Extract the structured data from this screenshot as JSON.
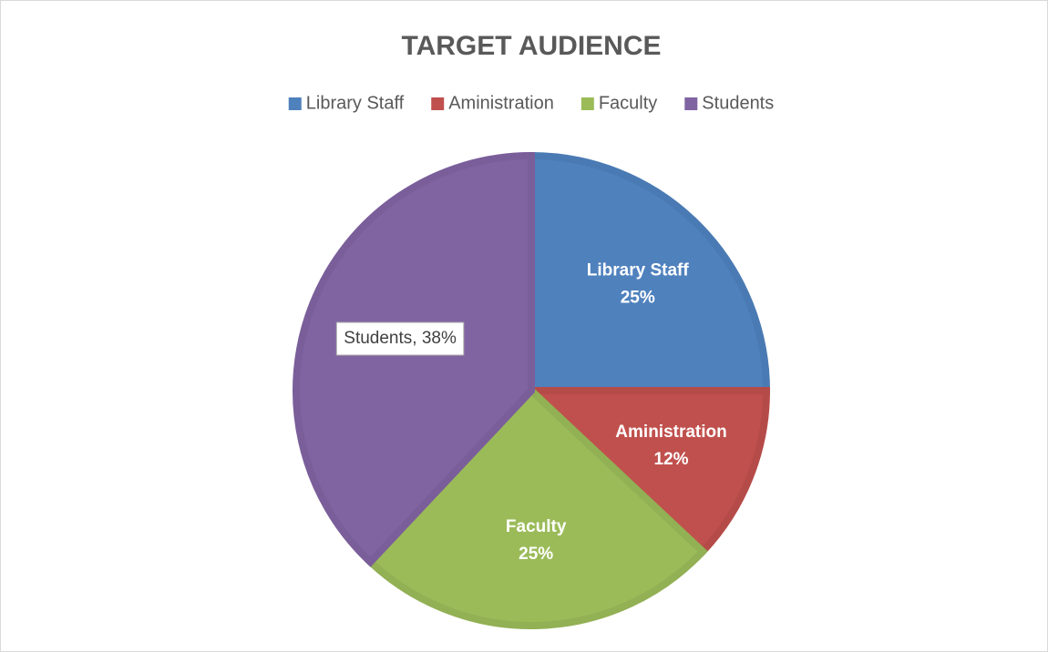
{
  "chart_data": {
    "type": "pie",
    "title": "TARGET AUDIENCE",
    "categories": [
      "Library Staff",
      "Aministration",
      "Faculty",
      "Students"
    ],
    "values": [
      25,
      12,
      25,
      38
    ],
    "value_labels": [
      "25%",
      "12%",
      "25%",
      "Students, 38%"
    ],
    "colors": [
      "#4f81bd",
      "#c0504d",
      "#9bbb59",
      "#8064a2"
    ],
    "strokes": [
      "#4a7ab3",
      "#b54b48",
      "#92b054",
      "#7a5e9a"
    ],
    "legend": "top"
  }
}
